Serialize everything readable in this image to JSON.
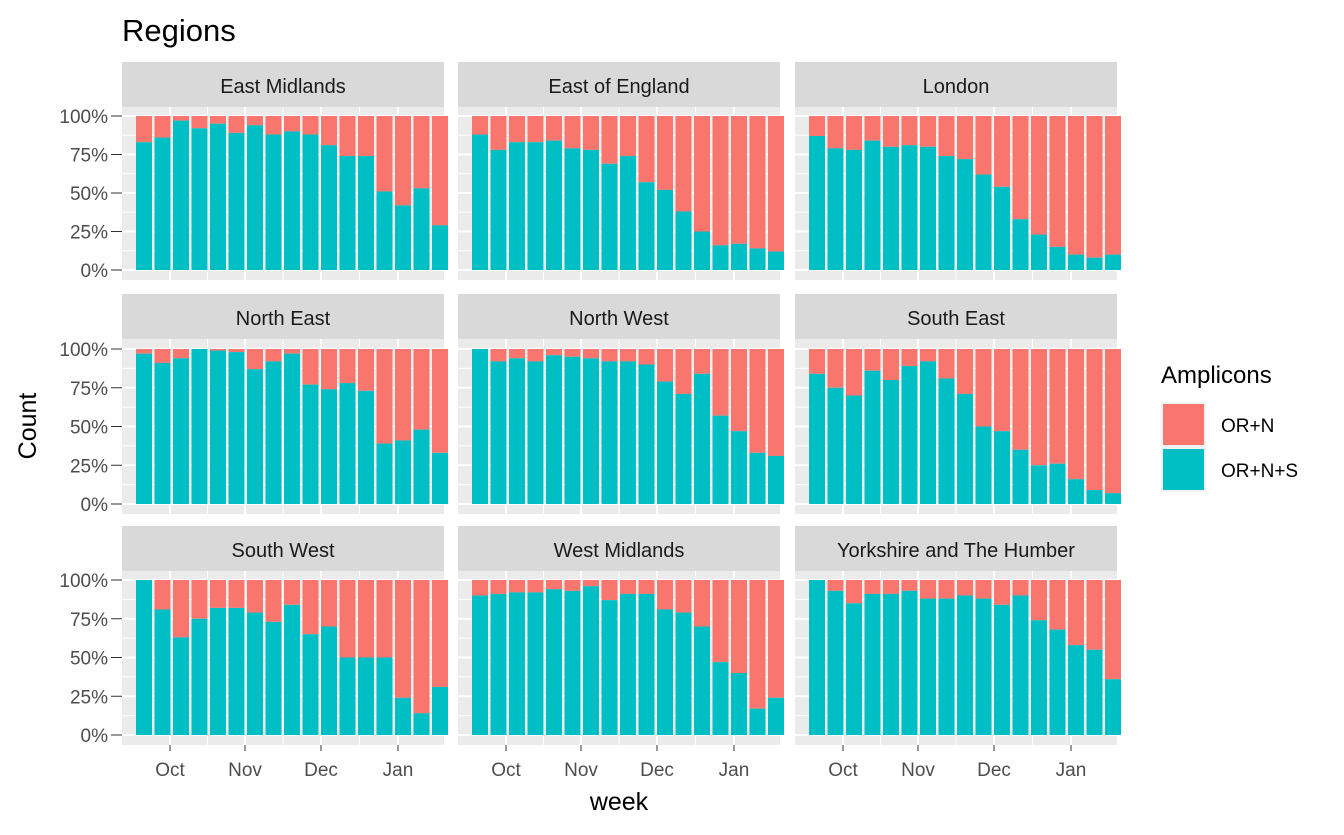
{
  "chart_data": {
    "type": "bar",
    "stacked": "percent",
    "title": "Regions",
    "xlabel": "week",
    "ylabel": "Count",
    "ylim": [
      0,
      1
    ],
    "yticks": [
      "0%",
      "25%",
      "50%",
      "75%",
      "100%"
    ],
    "xticks": [
      "Oct",
      "Nov",
      "Dec",
      "Jan"
    ],
    "grid": true,
    "legend": {
      "title": "Amplicons",
      "position": "right",
      "entries": [
        {
          "label": "OR+N",
          "color": "#F8766D"
        },
        {
          "label": "OR+N+S",
          "color": "#00BFC4"
        }
      ]
    },
    "series_colors": {
      "OR+N": "#F8766D",
      "OR+N+S": "#00BFC4"
    },
    "value_series": "OR+N+S",
    "note_values": "share of OR+N+S per weekly bar (remainder is OR+N)",
    "facets": [
      {
        "name": "East Midlands",
        "values": [
          0.83,
          0.86,
          0.97,
          0.92,
          0.95,
          0.89,
          0.94,
          0.88,
          0.9,
          0.88,
          0.81,
          0.74,
          0.74,
          0.51,
          0.42,
          0.53,
          0.29
        ]
      },
      {
        "name": "East of England",
        "values": [
          0.88,
          0.78,
          0.83,
          0.83,
          0.84,
          0.79,
          0.78,
          0.69,
          0.74,
          0.57,
          0.52,
          0.38,
          0.25,
          0.16,
          0.17,
          0.14,
          0.12
        ]
      },
      {
        "name": "London",
        "values": [
          0.87,
          0.79,
          0.78,
          0.84,
          0.8,
          0.81,
          0.8,
          0.74,
          0.72,
          0.62,
          0.54,
          0.33,
          0.23,
          0.15,
          0.1,
          0.08,
          0.1
        ]
      },
      {
        "name": "North East",
        "values": [
          0.97,
          0.91,
          0.94,
          1.0,
          0.99,
          0.98,
          0.87,
          0.92,
          0.97,
          0.77,
          0.74,
          0.78,
          0.73,
          0.39,
          0.41,
          0.48,
          0.33
        ]
      },
      {
        "name": "North West",
        "values": [
          1.0,
          0.92,
          0.94,
          0.92,
          0.96,
          0.95,
          0.94,
          0.92,
          0.92,
          0.9,
          0.79,
          0.71,
          0.84,
          0.57,
          0.47,
          0.33,
          0.31
        ]
      },
      {
        "name": "South East",
        "values": [
          0.84,
          0.75,
          0.7,
          0.86,
          0.8,
          0.89,
          0.92,
          0.81,
          0.71,
          0.5,
          0.47,
          0.35,
          0.25,
          0.26,
          0.16,
          0.09,
          0.07
        ]
      },
      {
        "name": "South West",
        "values": [
          1.0,
          0.81,
          0.63,
          0.75,
          0.82,
          0.82,
          0.79,
          0.73,
          0.84,
          0.65,
          0.7,
          0.5,
          0.5,
          0.5,
          0.24,
          0.14,
          0.31
        ]
      },
      {
        "name": "West Midlands",
        "values": [
          0.9,
          0.91,
          0.92,
          0.92,
          0.94,
          0.93,
          0.96,
          0.87,
          0.91,
          0.91,
          0.81,
          0.79,
          0.7,
          0.47,
          0.4,
          0.17,
          0.24
        ]
      },
      {
        "name": "Yorkshire and The Humber",
        "values": [
          1.0,
          0.93,
          0.85,
          0.91,
          0.91,
          0.93,
          0.88,
          0.88,
          0.9,
          0.88,
          0.84,
          0.9,
          0.74,
          0.68,
          0.58,
          0.55,
          0.36
        ]
      }
    ]
  }
}
